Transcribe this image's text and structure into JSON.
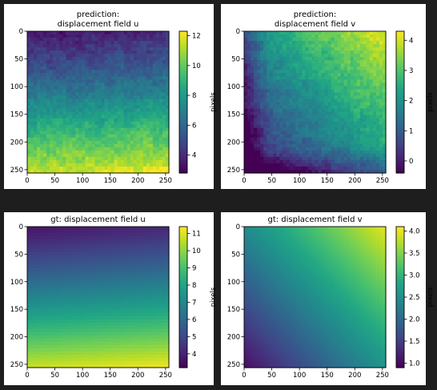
{
  "chart_data": [
    {
      "type": "heatmap",
      "title": "prediction:\ndisplacement field u",
      "colorbar_label": "pixels",
      "colormap": "viridis",
      "field": "u",
      "noise": true,
      "x_range": [
        0,
        256
      ],
      "y_range": [
        0,
        256
      ],
      "y_inverted": true,
      "x_ticks": [
        0,
        50,
        100,
        150,
        200,
        250
      ],
      "y_ticks": [
        0,
        50,
        100,
        150,
        200,
        250
      ],
      "value_min": 2.8,
      "value_max": 12.3,
      "colorbar_ticks": [
        4,
        6,
        8,
        10,
        12
      ]
    },
    {
      "type": "heatmap",
      "title": "prediction:\ndisplacement field v",
      "colorbar_label": "pixels",
      "colormap": "viridis",
      "field": "v",
      "noise": true,
      "x_range": [
        0,
        256
      ],
      "y_range": [
        0,
        256
      ],
      "y_inverted": true,
      "x_ticks": [
        0,
        50,
        100,
        150,
        200,
        250
      ],
      "y_ticks": [
        0,
        50,
        100,
        150,
        200,
        250
      ],
      "value_min": -0.4,
      "value_max": 4.3,
      "colorbar_ticks": [
        0,
        1,
        2,
        3,
        4
      ]
    },
    {
      "type": "heatmap",
      "title": "gt: displacement field u",
      "colorbar_label": "pixels",
      "colormap": "viridis",
      "field": "u",
      "noise": false,
      "x_range": [
        0,
        256
      ],
      "y_range": [
        0,
        256
      ],
      "y_inverted": true,
      "x_ticks": [
        0,
        50,
        100,
        150,
        200,
        250
      ],
      "y_ticks": [
        0,
        50,
        100,
        150,
        200,
        250
      ],
      "value_min": 3.2,
      "value_max": 11.4,
      "colorbar_ticks": [
        4,
        5,
        6,
        7,
        8,
        9,
        10,
        11
      ]
    },
    {
      "type": "heatmap",
      "title": "gt: displacement field v",
      "colorbar_label": "pixels",
      "colormap": "viridis",
      "field": "v",
      "noise": false,
      "x_range": [
        0,
        256
      ],
      "y_range": [
        0,
        256
      ],
      "y_inverted": true,
      "x_ticks": [
        0,
        50,
        100,
        150,
        200,
        250
      ],
      "y_ticks": [
        0,
        50,
        100,
        150,
        200,
        250
      ],
      "value_min": 0.9,
      "value_max": 4.1,
      "colorbar_ticks": [
        1.0,
        1.5,
        2.0,
        2.5,
        3.0,
        3.5,
        4.0
      ]
    }
  ]
}
